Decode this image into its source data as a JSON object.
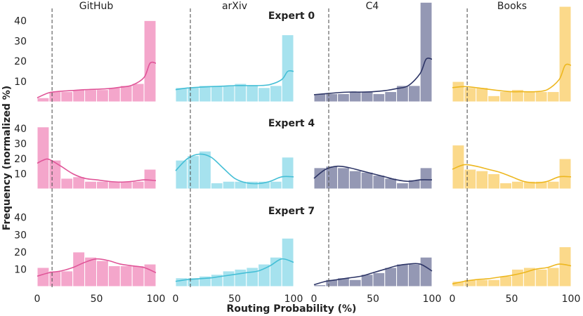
{
  "chart_data": {
    "type": "histogram-grid",
    "xlabel": "Routing Probability (%)",
    "ylabel": "Frequency (normalized %)",
    "xlim": [
      0,
      100
    ],
    "ylim": [
      0,
      46
    ],
    "x_ticks": [
      0,
      50,
      100
    ],
    "x_tick_labels": [
      "0",
      "50",
      "100"
    ],
    "y_ticks": [
      10,
      20,
      30,
      40
    ],
    "y_tick_labels": [
      "10",
      "20",
      "30",
      "40"
    ],
    "threshold_percent": 12.5,
    "bin_edges": [
      0,
      10,
      20,
      30,
      40,
      50,
      60,
      70,
      80,
      90,
      100
    ],
    "columns": [
      {
        "name": "GitHub",
        "color": "#f4a6cb",
        "line_color": "#e05598"
      },
      {
        "name": "arXiv",
        "color": "#a6e2ee",
        "line_color": "#45bfd6"
      },
      {
        "name": "C4",
        "color": "#9498b4",
        "line_color": "#2d3566"
      },
      {
        "name": "Books",
        "color": "#fbd98a",
        "line_color": "#edb71f"
      }
    ],
    "rows": [
      {
        "title": "Expert 0",
        "hist": [
          [
            2,
            5,
            5,
            6,
            6,
            6,
            7,
            8,
            9,
            40
          ],
          [
            7,
            7,
            8,
            8,
            8,
            9,
            8,
            7,
            8,
            33
          ],
          [
            4,
            4,
            4,
            5,
            5,
            4,
            5,
            8,
            8,
            49
          ],
          [
            10,
            7,
            7,
            3,
            5,
            6,
            5,
            5,
            5,
            47
          ]
        ],
        "kde": [
          [
            [
              0,
              2
            ],
            [
              10,
              4.5
            ],
            [
              20,
              5.2
            ],
            [
              30,
              5.6
            ],
            [
              40,
              6
            ],
            [
              50,
              6.2
            ],
            [
              60,
              6.5
            ],
            [
              70,
              7.2
            ],
            [
              80,
              8.2
            ],
            [
              90,
              12
            ],
            [
              95,
              19
            ],
            [
              100,
              19
            ]
          ],
          [
            [
              0,
              6
            ],
            [
              10,
              6.8
            ],
            [
              20,
              7.2
            ],
            [
              30,
              7.5
            ],
            [
              40,
              7.7
            ],
            [
              50,
              8
            ],
            [
              60,
              8
            ],
            [
              70,
              8
            ],
            [
              80,
              8.5
            ],
            [
              90,
              11
            ],
            [
              95,
              15
            ],
            [
              100,
              15
            ]
          ],
          [
            [
              0,
              3.5
            ],
            [
              10,
              4
            ],
            [
              20,
              4.5
            ],
            [
              30,
              4.8
            ],
            [
              40,
              4.8
            ],
            [
              50,
              5
            ],
            [
              60,
              5.5
            ],
            [
              70,
              6.5
            ],
            [
              80,
              8
            ],
            [
              90,
              14
            ],
            [
              95,
              21
            ],
            [
              100,
              21
            ]
          ],
          [
            [
              0,
              7
            ],
            [
              10,
              7.5
            ],
            [
              20,
              7
            ],
            [
              30,
              6.2
            ],
            [
              40,
              5.5
            ],
            [
              50,
              5
            ],
            [
              60,
              5
            ],
            [
              70,
              5
            ],
            [
              80,
              6
            ],
            [
              90,
              11
            ],
            [
              95,
              18
            ],
            [
              100,
              18
            ]
          ]
        ]
      },
      {
        "title": "Expert 4",
        "hist": [
          [
            41,
            19,
            7,
            8,
            5,
            5,
            5,
            5,
            5,
            13
          ],
          [
            19,
            22,
            25,
            4,
            5,
            5,
            5,
            5,
            5,
            21
          ],
          [
            14,
            15,
            14,
            12,
            11,
            9,
            7,
            4,
            6,
            14
          ],
          [
            29,
            13,
            12,
            10,
            4,
            5,
            5,
            5,
            5,
            20
          ]
        ],
        "kde": [
          [
            [
              0,
              17
            ],
            [
              5,
              19
            ],
            [
              10,
              19.5
            ],
            [
              20,
              15
            ],
            [
              30,
              10
            ],
            [
              40,
              7
            ],
            [
              50,
              6
            ],
            [
              60,
              5
            ],
            [
              70,
              4.5
            ],
            [
              80,
              5
            ],
            [
              90,
              6
            ],
            [
              100,
              5.5
            ]
          ],
          [
            [
              0,
              12
            ],
            [
              10,
              20
            ],
            [
              20,
              23
            ],
            [
              30,
              21
            ],
            [
              40,
              14
            ],
            [
              50,
              7
            ],
            [
              60,
              4
            ],
            [
              70,
              3.5
            ],
            [
              80,
              5
            ],
            [
              90,
              8
            ],
            [
              100,
              8
            ]
          ],
          [
            [
              0,
              7
            ],
            [
              10,
              13
            ],
            [
              20,
              15
            ],
            [
              30,
              14
            ],
            [
              40,
              12
            ],
            [
              50,
              10
            ],
            [
              60,
              8
            ],
            [
              70,
              6
            ],
            [
              80,
              5
            ],
            [
              90,
              6
            ],
            [
              100,
              6
            ]
          ],
          [
            [
              0,
              13
            ],
            [
              10,
              16
            ],
            [
              20,
              15
            ],
            [
              30,
              13
            ],
            [
              40,
              11
            ],
            [
              50,
              8
            ],
            [
              60,
              5
            ],
            [
              70,
              4
            ],
            [
              80,
              5
            ],
            [
              90,
              8
            ],
            [
              100,
              8
            ]
          ]
        ]
      },
      {
        "title": "Expert 7",
        "hist": [
          [
            11,
            9,
            9,
            20,
            17,
            15,
            12,
            12,
            12,
            13
          ],
          [
            5,
            5,
            6,
            7,
            9,
            10,
            11,
            13,
            17,
            28
          ],
          [
            1,
            4,
            5,
            4,
            7,
            8,
            11,
            13,
            13,
            17
          ],
          [
            3,
            4,
            4,
            4,
            6,
            10,
            11,
            10,
            11,
            23
          ]
        ],
        "kde": [
          [
            [
              0,
              6
            ],
            [
              10,
              8
            ],
            [
              20,
              9
            ],
            [
              30,
              11
            ],
            [
              40,
              14
            ],
            [
              50,
              16
            ],
            [
              60,
              15
            ],
            [
              70,
              13
            ],
            [
              80,
              12
            ],
            [
              90,
              11
            ],
            [
              100,
              8
            ]
          ],
          [
            [
              0,
              3
            ],
            [
              10,
              4
            ],
            [
              20,
              4.5
            ],
            [
              30,
              5
            ],
            [
              40,
              6
            ],
            [
              50,
              7
            ],
            [
              60,
              8
            ],
            [
              70,
              9
            ],
            [
              80,
              12
            ],
            [
              90,
              16
            ],
            [
              100,
              14
            ]
          ],
          [
            [
              0,
              1
            ],
            [
              10,
              3
            ],
            [
              20,
              4
            ],
            [
              30,
              5
            ],
            [
              40,
              6
            ],
            [
              50,
              8
            ],
            [
              60,
              10
            ],
            [
              70,
              12
            ],
            [
              80,
              13
            ],
            [
              90,
              13
            ],
            [
              100,
              9
            ]
          ],
          [
            [
              0,
              1.5
            ],
            [
              10,
              3
            ],
            [
              20,
              4
            ],
            [
              30,
              4.5
            ],
            [
              40,
              5.5
            ],
            [
              50,
              6.5
            ],
            [
              60,
              8
            ],
            [
              70,
              10
            ],
            [
              80,
              11
            ],
            [
              90,
              13
            ],
            [
              100,
              12
            ]
          ]
        ]
      }
    ]
  }
}
